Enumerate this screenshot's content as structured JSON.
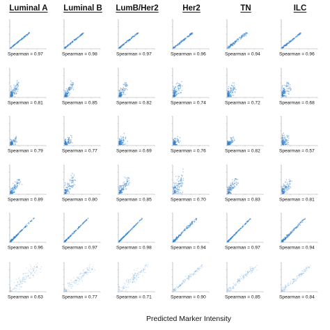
{
  "chart_data": {
    "type": "scatter",
    "xlabel": "Predicted Marker Intensity",
    "columns": [
      "Luminal A",
      "Luminal B",
      "LumB/Her2",
      "Her2",
      "TN",
      "ILC"
    ],
    "annotation_prefix": "Spearman = ",
    "rows": [
      {
        "pattern": "diagonal-strong",
        "spearman": [
          "0.97",
          "0.98",
          "0.97",
          "0.96",
          "0.94",
          "0.96"
        ]
      },
      {
        "pattern": "origin-cluster",
        "spearman": [
          "0.81",
          "0.85",
          "0.82",
          "0.74",
          "0.72",
          "0.68"
        ]
      },
      {
        "pattern": "origin-cluster-small",
        "spearman": [
          "0.79",
          "0.77",
          "0.69",
          "0.76",
          "0.82",
          "0.57"
        ]
      },
      {
        "pattern": "origin-spread",
        "spearman": [
          "0.89",
          "0.80",
          "0.85",
          "0.70",
          "0.83",
          "0.81"
        ]
      },
      {
        "pattern": "diagonal-dense",
        "spearman": [
          "0.96",
          "0.97",
          "0.98",
          "0.94",
          "0.97",
          "0.94"
        ]
      },
      {
        "pattern": "diagonal-faint",
        "spearman": [
          "0.63",
          "0.77",
          "0.71",
          "0.90",
          "0.85",
          "0.84"
        ]
      }
    ],
    "grid": false,
    "point_color": "#2f7fcf"
  }
}
